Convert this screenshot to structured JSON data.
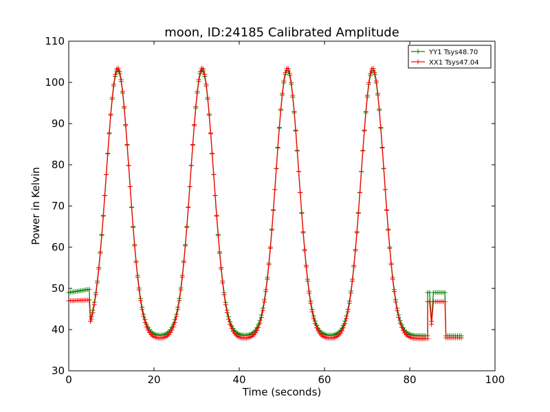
{
  "chart_data": {
    "type": "line",
    "title": "moon, ID:24185 Calibrated Amplitude",
    "xlabel": "Time (seconds)",
    "ylabel": "Power in Kelvin",
    "xlim": [
      0,
      100
    ],
    "ylim": [
      30,
      110
    ],
    "xticks": [
      0,
      20,
      40,
      60,
      80,
      100
    ],
    "yticks": [
      30,
      40,
      50,
      60,
      70,
      80,
      90,
      100,
      110
    ],
    "xtick_labels": [
      "0",
      "20",
      "40",
      "60",
      "80",
      "100"
    ],
    "ytick_labels": [
      "30",
      "40",
      "50",
      "60",
      "70",
      "80",
      "90",
      "100",
      "110"
    ],
    "grid": false,
    "legend_position": "top-right",
    "series": [
      {
        "name": "YY1 Tsys48.70",
        "color": "#008000",
        "marker": "+",
        "peaks": [
          11.5,
          31.3,
          51.3,
          71.3
        ],
        "peak_value": 103,
        "peak_width": 2.7,
        "baseline": 38.5,
        "start_segment": {
          "x": [
            0,
            5
          ],
          "y": [
            49.0,
            49.8
          ]
        },
        "gap_segment": {
          "x": [
            84.2,
            88.5
          ],
          "y": 49.0
        },
        "end_segment": {
          "x": [
            88.5,
            92.5
          ],
          "y": 38.5
        }
      },
      {
        "name": "XX1 Tsys47.04",
        "color": "#ff0000",
        "marker": "+",
        "peaks": [
          11.5,
          31.3,
          51.3,
          71.3
        ],
        "peak_value": 103.5,
        "peak_width": 2.7,
        "baseline": 37.8,
        "start_segment": {
          "x": [
            0,
            5
          ],
          "y": [
            47.0,
            47.2
          ]
        },
        "gap_segment": {
          "x": [
            84.2,
            88.5
          ],
          "y": 46.8
        },
        "end_segment": {
          "x": [
            88.5,
            92.5
          ],
          "y": 38.0
        }
      }
    ]
  }
}
